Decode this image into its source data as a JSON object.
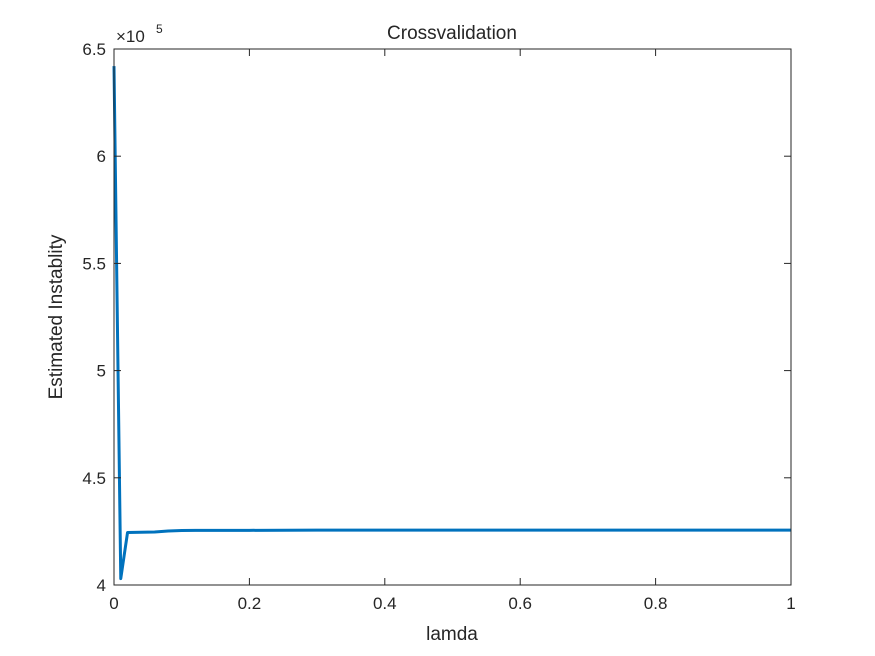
{
  "chart_data": {
    "type": "line",
    "title": "Crossvalidation",
    "xlabel": "lamda",
    "ylabel": "Estimated Instablity",
    "xlim": [
      0,
      1
    ],
    "ylim": [
      4.0,
      6.5
    ],
    "y_multiplier_base": "×10",
    "y_multiplier_exponent": "5",
    "xticks": [
      0,
      0.2,
      0.4,
      0.6,
      0.8,
      1
    ],
    "xtick_labels": [
      "0",
      "0.2",
      "0.4",
      "0.6",
      "0.8",
      "1"
    ],
    "yticks": [
      4,
      4.5,
      5,
      5.5,
      6,
      6.5
    ],
    "ytick_labels": [
      "4",
      "4.5",
      "5",
      "5.5",
      "6",
      "6.5"
    ],
    "grid": false,
    "line_color": "#0072BD",
    "series": [
      {
        "x": [
          0,
          0.01,
          0.02,
          0.04,
          0.06,
          0.08,
          0.1,
          0.12,
          0.15,
          0.2,
          0.3,
          0.4,
          0.5,
          0.6,
          0.7,
          0.8,
          0.9,
          1.0
        ],
        "y": [
          6.42,
          4.03,
          4.245,
          4.246,
          4.247,
          4.252,
          4.254,
          4.255,
          4.255,
          4.255,
          4.256,
          4.256,
          4.256,
          4.256,
          4.256,
          4.256,
          4.256,
          4.256
        ]
      }
    ]
  }
}
